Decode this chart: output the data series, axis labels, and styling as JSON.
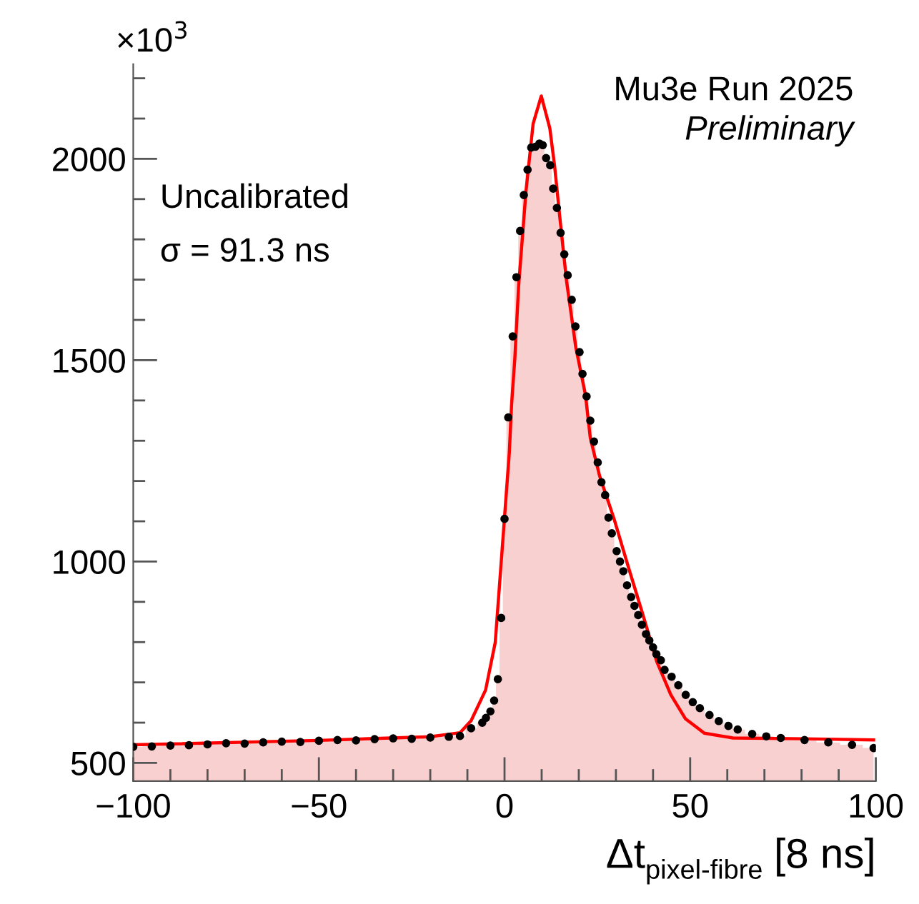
{
  "chart_data": {
    "type": "scatter",
    "xlabel": "Δt$_{pixel-fibre}$ [8 ns]",
    "annotations": [
      "×10$^{3}$",
      "Mu3e Run 2025",
      "Preliminary",
      "Uncalibrated",
      "σ = 91.3 ns"
    ],
    "xlim": [
      -100,
      100
    ],
    "xticks": [
      {
        "value": -100,
        "label": "−100"
      },
      {
        "value": -50,
        "label": "−50"
      },
      0,
      50,
      100
    ],
    "ylim": [
      455,
      2235
    ],
    "yticks": [
      500,
      1000,
      1500,
      2000
    ],
    "grid": false,
    "legend": false,
    "series": [
      {
        "type": "area",
        "color": "#f9d0d0",
        "x": [
          -100,
          -95,
          -90,
          -85,
          -80,
          -75,
          -70,
          -65,
          -60,
          -55,
          -50,
          -45,
          -40,
          -35,
          -30,
          -25,
          -20,
          -15,
          -12,
          -9,
          -6,
          -5,
          -3.8,
          -2.8,
          -1.8,
          -0.9,
          0,
          1.0,
          2.2,
          3.2,
          4.2,
          5.2,
          6.2,
          7.2,
          8.3,
          9.4,
          10.3,
          11.2,
          12.3,
          13.1,
          14.1,
          15.1,
          16.1,
          17.0,
          18.1,
          19.1,
          20.2,
          21.0,
          22.1,
          23.1,
          24.1,
          25.1,
          26.1,
          27.1,
          28.0,
          28.9,
          30.2,
          31.1,
          32.0,
          33.0,
          34.1,
          35.0,
          36.0,
          37.0,
          38.1,
          39.0,
          40.0,
          40.9,
          42.1,
          43.1,
          45.0,
          46.8,
          48.8,
          50.7,
          52.6,
          55.2,
          57.7,
          60.3,
          62.8,
          66.7,
          70.5,
          74.4,
          80.8,
          87.2,
          93.6,
          99.4
        ],
        "values": [
          540,
          541,
          543,
          544,
          546,
          549,
          548,
          551,
          553,
          552,
          555,
          557,
          556,
          559,
          561,
          560,
          563,
          565,
          567,
          586,
          600,
          612,
          628,
          655,
          708,
          860,
          1106,
          1358,
          1559,
          1706,
          1821,
          1910,
          1973,
          2028,
          2030,
          2038,
          2034,
          2002,
          1984,
          1926,
          1878,
          1816,
          1763,
          1711,
          1650,
          1584,
          1520,
          1466,
          1410,
          1350,
          1298,
          1246,
          1197,
          1165,
          1109,
          1070,
          1026,
          1000,
          976,
          941,
          912,
          890,
          867,
          843,
          820,
          804,
          787,
          770,
          755,
          731,
          714,
          693,
          669,
          651,
          636,
          619,
          604,
          592,
          583,
          572,
          566,
          562,
          557,
          551,
          545,
          537
        ]
      },
      {
        "color": "#000000",
        "marker": "circle",
        "x": [
          -100,
          -95,
          -90,
          -85,
          -80,
          -75,
          -70,
          -65,
          -60,
          -55,
          -50,
          -45,
          -40,
          -35,
          -30,
          -25,
          -20,
          -15,
          -12,
          -9,
          -6,
          -5,
          -3.8,
          -2.8,
          -1.8,
          -0.9,
          0,
          1.0,
          2.2,
          3.2,
          4.2,
          5.2,
          6.2,
          7.2,
          8.3,
          9.4,
          10.3,
          11.2,
          12.3,
          13.1,
          14.1,
          15.1,
          16.1,
          17.0,
          18.1,
          19.1,
          20.2,
          21.0,
          22.1,
          23.1,
          24.1,
          25.1,
          26.1,
          27.1,
          28.0,
          28.9,
          30.2,
          31.1,
          32.0,
          33.0,
          34.1,
          35.0,
          36.0,
          37.0,
          38.1,
          39.0,
          40.0,
          40.9,
          42.1,
          43.1,
          45.0,
          46.8,
          48.8,
          50.7,
          52.6,
          55.2,
          57.7,
          60.3,
          62.8,
          66.7,
          70.5,
          74.4,
          80.8,
          87.2,
          93.6,
          99.4
        ],
        "values": [
          540,
          541,
          543,
          544,
          546,
          549,
          548,
          551,
          553,
          552,
          555,
          557,
          556,
          559,
          561,
          560,
          563,
          565,
          567,
          586,
          600,
          612,
          628,
          655,
          708,
          860,
          1106,
          1358,
          1559,
          1706,
          1821,
          1910,
          1973,
          2028,
          2030,
          2038,
          2034,
          2002,
          1984,
          1926,
          1878,
          1816,
          1763,
          1711,
          1650,
          1584,
          1520,
          1466,
          1410,
          1350,
          1298,
          1246,
          1197,
          1165,
          1109,
          1070,
          1026,
          1000,
          976,
          941,
          912,
          890,
          867,
          843,
          820,
          804,
          787,
          770,
          755,
          731,
          714,
          693,
          669,
          651,
          636,
          619,
          604,
          592,
          583,
          572,
          566,
          562,
          557,
          551,
          545,
          537
        ]
      },
      {
        "type": "line",
        "color": "#ff0000",
        "marker": "none",
        "line_style": "solid",
        "x": [
          -100,
          -50,
          -20,
          -12,
          -9,
          -5.1,
          -2.5,
          -0.6,
          1.3,
          1.9,
          2.8,
          3.8,
          5.8,
          7.7,
          9.9,
          12.2,
          13.5,
          14.8,
          16.7,
          19.2,
          21.8,
          23.1,
          25.6,
          29.5,
          33.3,
          37.2,
          41.0,
          44.8,
          48.7,
          53.8,
          61.5,
          80.8,
          99.4
        ],
        "values": [
          545,
          556,
          565,
          575,
          605,
          681,
          799,
          1035,
          1272,
          1390,
          1508,
          1685,
          1922,
          2087,
          2156,
          2076,
          1981,
          1863,
          1697,
          1532,
          1414,
          1307,
          1213,
          1106,
          988,
          870,
          752,
          669,
          610,
          574,
          562,
          560,
          557
        ]
      }
    ]
  }
}
